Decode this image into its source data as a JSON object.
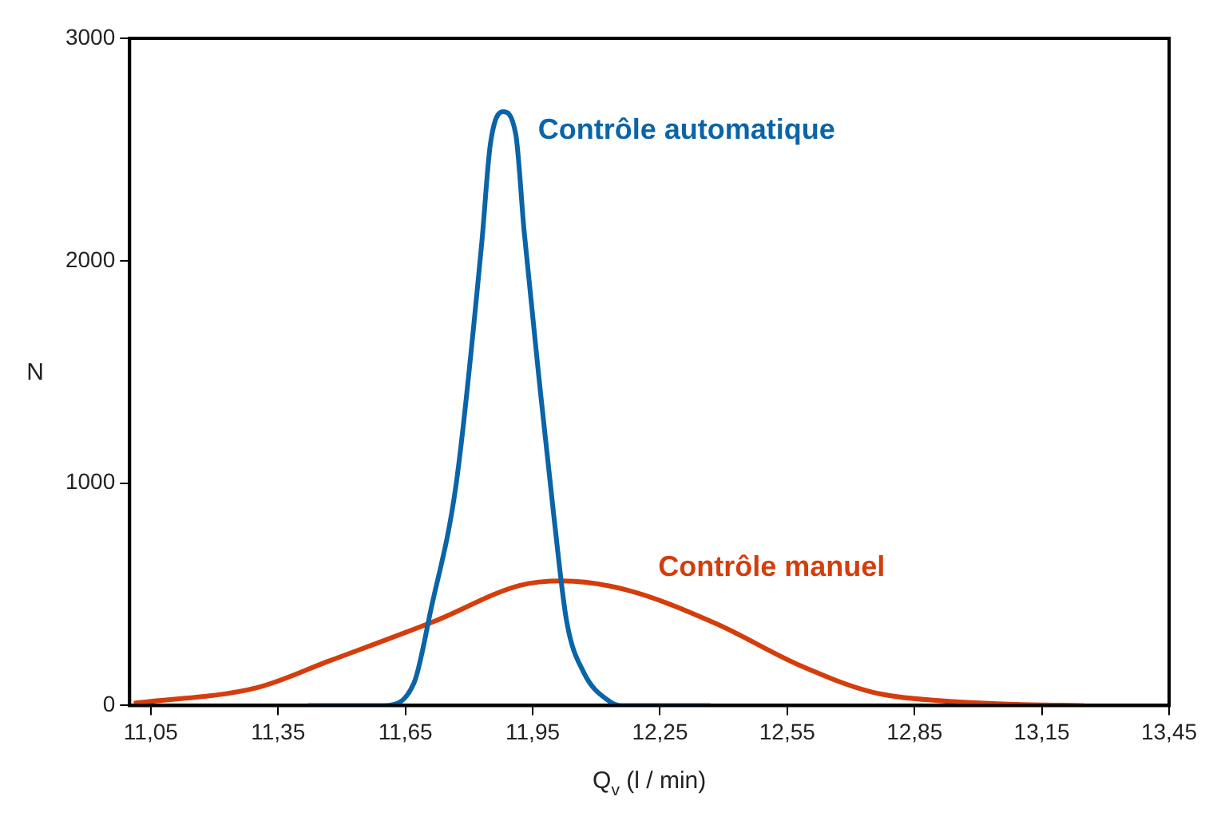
{
  "chart_data": {
    "type": "line",
    "xlabel": "Q$_{v}$ (l / min)",
    "ylabel": "N",
    "xlim": [
      11.0,
      13.45
    ],
    "ylim": [
      0,
      3000
    ],
    "xticks": [
      {
        "value": 11.05,
        "label": "11,05"
      },
      {
        "value": 11.35,
        "label": "11,35"
      },
      {
        "value": 11.65,
        "label": "11,65"
      },
      {
        "value": 11.95,
        "label": "11,95"
      },
      {
        "value": 12.25,
        "label": "12,25"
      },
      {
        "value": 12.55,
        "label": "12,55"
      },
      {
        "value": 12.85,
        "label": "12,85"
      },
      {
        "value": 13.15,
        "label": "13,15"
      },
      {
        "value": 13.45,
        "label": "13,45"
      }
    ],
    "yticks": [
      0,
      1000,
      2000,
      3000
    ],
    "grid": false,
    "legend": false,
    "marker": "none",
    "line_style": "solid",
    "series": [
      {
        "name": "Contrôle automatique",
        "color": "#0a64a8",
        "x": [
          11.42,
          11.6,
          11.67,
          11.71,
          11.77,
          11.83,
          11.85,
          11.88,
          11.91,
          11.93,
          11.97,
          12.0,
          12.03,
          12.07,
          12.13,
          12.16,
          12.37
        ],
        "values": [
          0,
          0,
          100,
          430,
          1000,
          2080,
          2520,
          2670,
          2570,
          2130,
          1380,
          850,
          380,
          150,
          20,
          0,
          0
        ]
      },
      {
        "name": "Contrôle manuel",
        "color": "#d43d0c",
        "x": [
          11.01,
          11.3,
          11.47,
          11.72,
          11.92,
          12.02,
          12.17,
          12.38,
          12.58,
          12.75,
          12.92,
          13.09,
          13.25
        ],
        "values": [
          10,
          80,
          200,
          380,
          540,
          560,
          520,
          370,
          180,
          60,
          20,
          5,
          0
        ]
      }
    ]
  }
}
